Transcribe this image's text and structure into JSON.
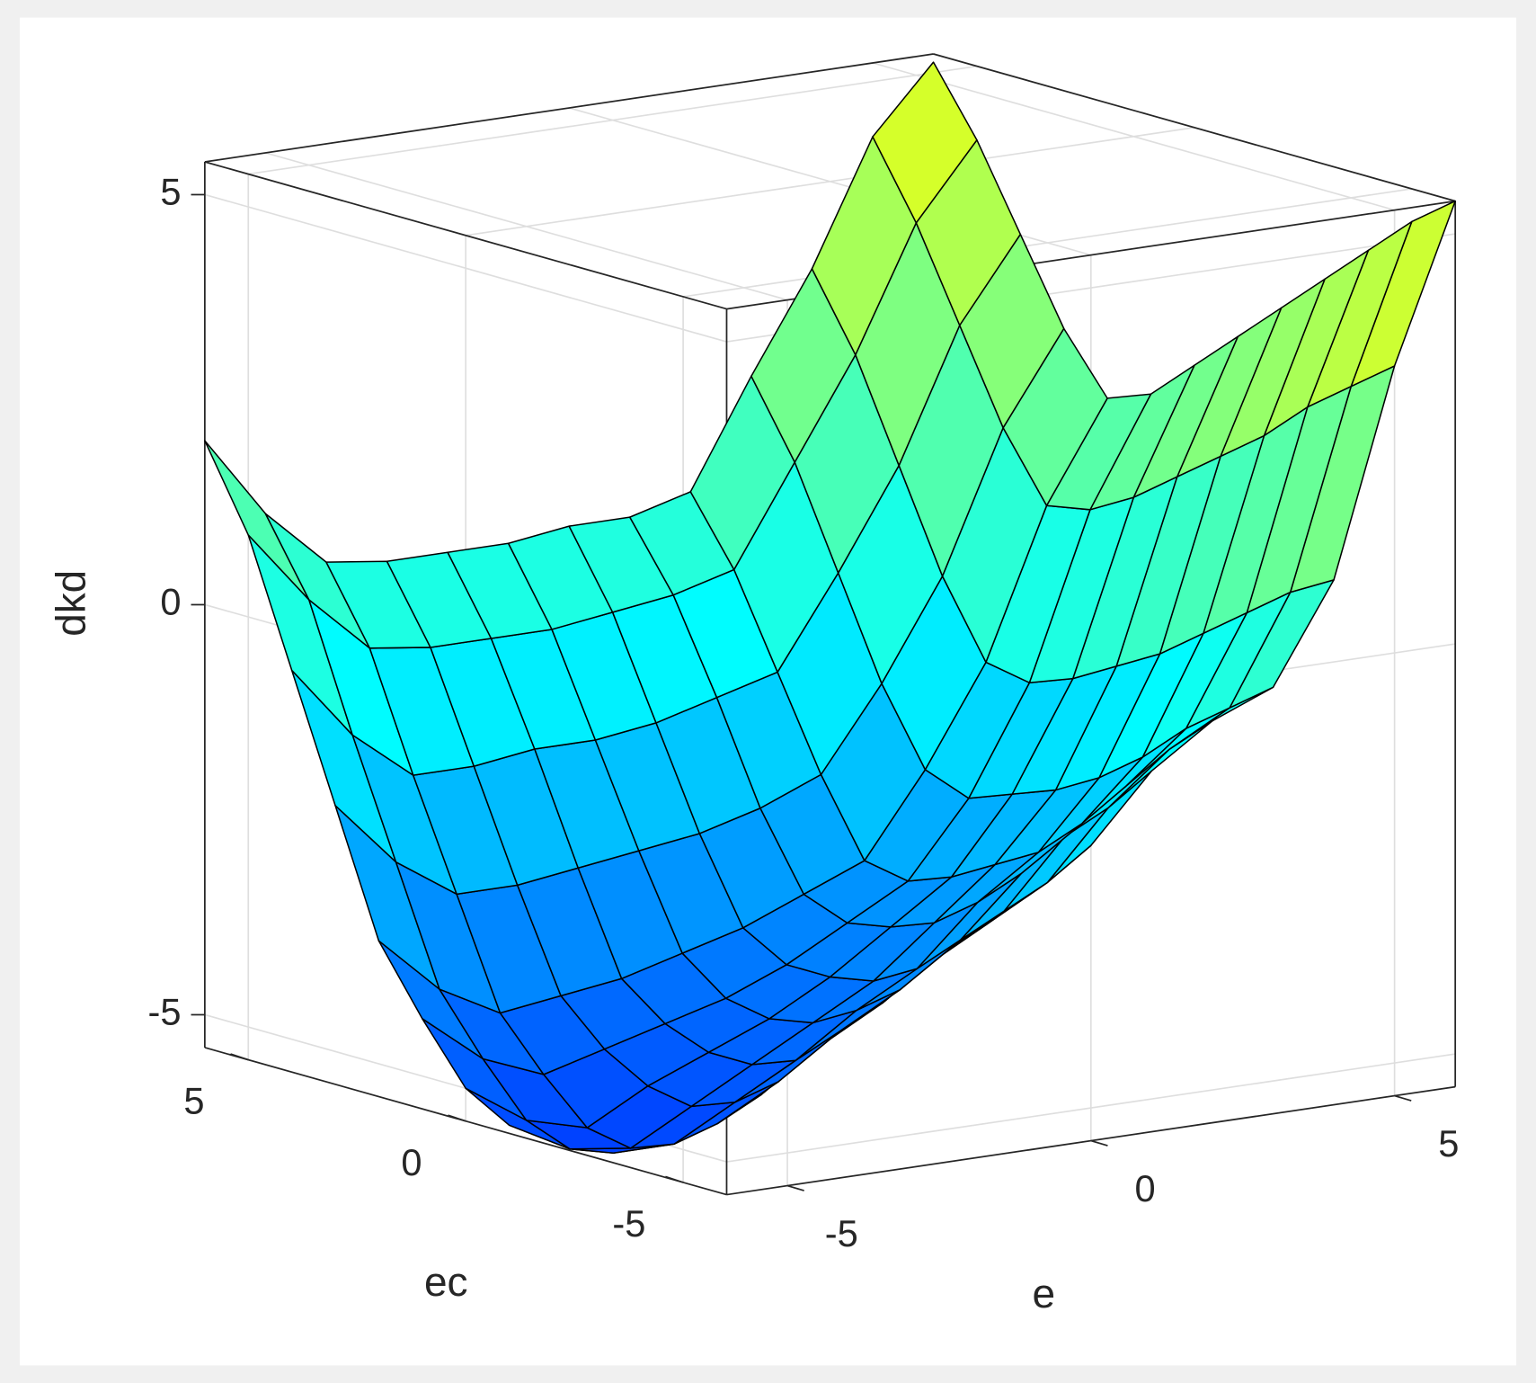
{
  "chart_data": {
    "type": "surface",
    "xlabel": "e",
    "ylabel": "ec",
    "zlabel": "dkd",
    "x": [
      -6,
      -5,
      -4,
      -3,
      -2,
      -1,
      0,
      1,
      2,
      3,
      4,
      5,
      6
    ],
    "y": [
      -6,
      -5,
      -4,
      -3,
      -2,
      -1,
      0,
      1,
      2,
      3,
      4,
      5,
      6
    ],
    "z": [
      [
        -3.4,
        -3.6,
        -3.5,
        -3.0,
        -2.6,
        -2.2,
        -1.8,
        -1.0,
        -0.5,
        -0.2,
        1.0,
        3.5,
        5.4
      ],
      [
        -4.0,
        -4.2,
        -4.1,
        -3.6,
        -3.2,
        -2.8,
        -2.4,
        -1.6,
        -1.0,
        -0.6,
        0.7,
        3.1,
        5.0
      ],
      [
        -4.5,
        -4.7,
        -4.7,
        -4.2,
        -3.8,
        -3.3,
        -2.9,
        -2.1,
        -1.6,
        -1.0,
        0.3,
        2.7,
        4.5
      ],
      [
        -5.0,
        -5.3,
        -5.2,
        -4.8,
        -4.3,
        -3.9,
        -3.4,
        -2.7,
        -2.2,
        -1.5,
        -0.1,
        2.2,
        4.0
      ],
      [
        -5.3,
        -5.6,
        -5.6,
        -5.2,
        -4.8,
        -4.3,
        -3.9,
        -3.2,
        -2.7,
        -1.9,
        -0.5,
        1.8,
        3.5
      ],
      [
        -5.3,
        -5.7,
        -5.8,
        -5.4,
        -5.0,
        -4.6,
        -4.2,
        -3.6,
        -3.0,
        -2.2,
        -0.8,
        1.4,
        3.0
      ],
      [
        -5.0,
        -5.5,
        -5.7,
        -5.3,
        -5.0,
        -4.7,
        -4.3,
        -3.8,
        -3.3,
        -2.4,
        -1.1,
        1.0,
        2.5
      ],
      [
        -4.3,
        -4.9,
        -5.2,
        -5.0,
        -4.8,
        -4.6,
        -4.3,
        -3.9,
        -3.5,
        -2.6,
        -1.3,
        0.7,
        2.0
      ],
      [
        -3.5,
        -4.2,
        -4.6,
        -4.5,
        -4.4,
        -4.2,
        -4.0,
        -3.7,
        -3.4,
        -2.4,
        -1.2,
        0.6,
        1.8
      ],
      [
        -2.0,
        -2.8,
        -3.3,
        -3.3,
        -3.2,
        -3.1,
        -3.0,
        -2.8,
        -2.5,
        -1.5,
        -0.3,
        1.4,
        2.5
      ],
      [
        -0.5,
        -1.4,
        -2.0,
        -2.0,
        -1.9,
        -1.9,
        -1.8,
        -1.6,
        -1.4,
        -0.3,
        0.9,
        2.5,
        3.5
      ],
      [
        1.0,
        0.1,
        -0.6,
        -0.7,
        -0.7,
        -0.7,
        -0.6,
        -0.5,
        -0.3,
        0.9,
        2.1,
        3.6,
        4.5
      ],
      [
        2.0,
        1.0,
        0.3,
        0.2,
        0.2,
        0.2,
        0.3,
        0.3,
        0.5,
        1.8,
        3.0,
        4.5,
        5.3
      ]
    ],
    "xlim": [
      -6,
      6
    ],
    "ylim": [
      -6,
      6
    ],
    "zlim": [
      -5.4,
      5.4
    ],
    "xticks": [
      -5,
      0,
      5
    ],
    "yticks": [
      -5,
      0,
      5
    ],
    "zticks": [
      -5,
      0,
      5
    ],
    "grid": true,
    "colormap": "jet",
    "edge_color": "#000000"
  }
}
